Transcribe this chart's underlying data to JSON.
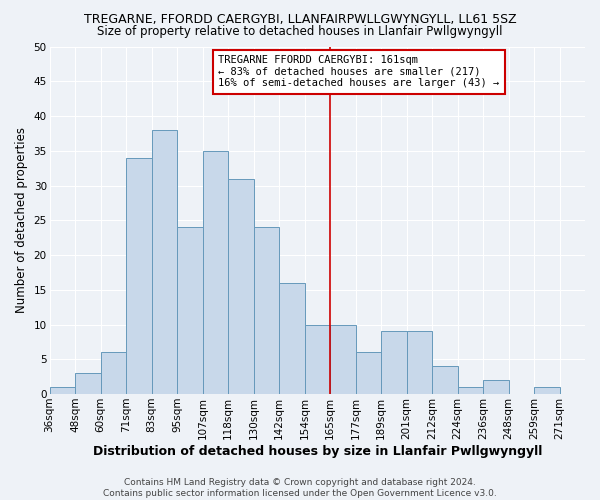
{
  "title1": "TREGARNE, FFORDD CAERGYBI, LLANFAIRPWLLGWYNGYLL, LL61 5SZ",
  "title2": "Size of property relative to detached houses in Llanfair Pwllgwyngyll",
  "xlabel": "Distribution of detached houses by size in Llanfair Pwllgwyngyll",
  "ylabel": "Number of detached properties",
  "bar_labels": [
    "36sqm",
    "48sqm",
    "60sqm",
    "71sqm",
    "83sqm",
    "95sqm",
    "107sqm",
    "118sqm",
    "130sqm",
    "142sqm",
    "154sqm",
    "165sqm",
    "177sqm",
    "189sqm",
    "201sqm",
    "212sqm",
    "224sqm",
    "236sqm",
    "248sqm",
    "259sqm",
    "271sqm"
  ],
  "bar_heights": [
    1,
    3,
    6,
    34,
    38,
    24,
    35,
    31,
    24,
    16,
    10,
    10,
    6,
    9,
    9,
    4,
    1,
    2,
    0,
    1,
    0
  ],
  "bar_color": "#c8d8ea",
  "bar_edge_color": "#6699bb",
  "vline_color": "#cc0000",
  "ylim": [
    0,
    50
  ],
  "yticks": [
    0,
    5,
    10,
    15,
    20,
    25,
    30,
    35,
    40,
    45,
    50
  ],
  "annotation_title": "TREGARNE FFORDD CAERGYBI: 161sqm",
  "annotation_line1": "← 83% of detached houses are smaller (217)",
  "annotation_line2": "16% of semi-detached houses are larger (43) →",
  "annotation_box_color": "#cc0000",
  "footer": "Contains HM Land Registry data © Crown copyright and database right 2024.\nContains public sector information licensed under the Open Government Licence v3.0.",
  "bg_color": "#eef2f7",
  "grid_color": "#ffffff",
  "title1_fontsize": 9,
  "title2_fontsize": 8.5,
  "xlabel_fontsize": 9,
  "ylabel_fontsize": 8.5,
  "tick_fontsize": 7.5,
  "footer_fontsize": 6.5
}
